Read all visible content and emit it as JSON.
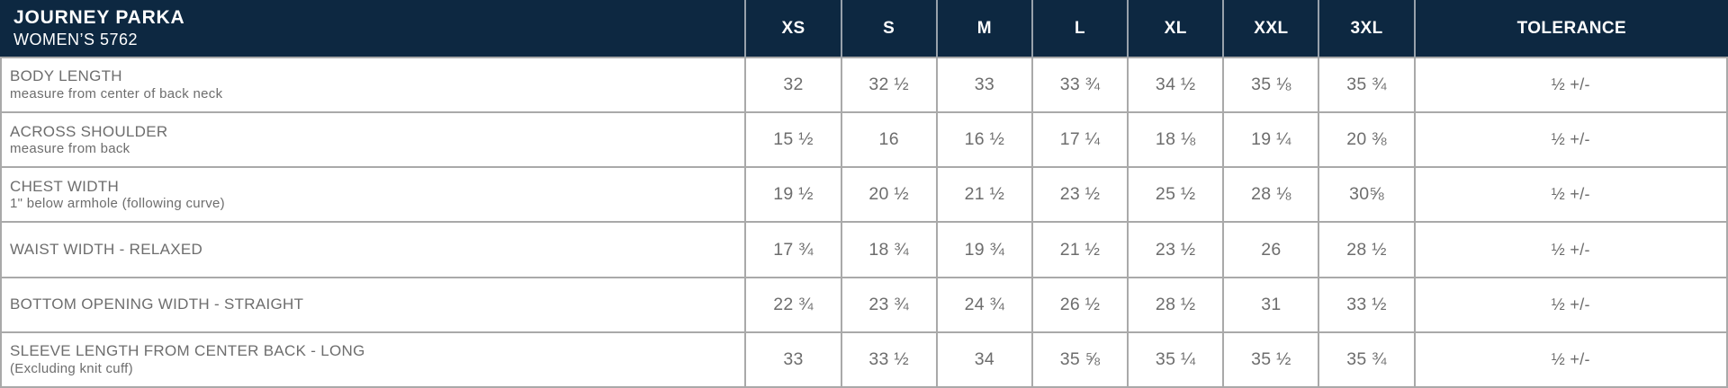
{
  "header": {
    "title": "JOURNEY PARKA",
    "subtitle": "WOMEN’S 5762",
    "size_columns": [
      "XS",
      "S",
      "M",
      "L",
      "XL",
      "XXL",
      "3XL"
    ],
    "tolerance_label": "TOLERANCE"
  },
  "colors": {
    "header_bg": "#0d2841",
    "header_text": "#ffffff",
    "grid_line": "#a9a9a9",
    "header_divider": "#97a1ab",
    "body_text": "#6d6d6d"
  },
  "rows": [
    {
      "label": "BODY LENGTH",
      "note": "measure from center of back neck",
      "values": [
        "32",
        "32 ½",
        "33",
        "33 ¾",
        "34 ½",
        "35 ⅛",
        "35 ¾"
      ],
      "tolerance": "½ +/-"
    },
    {
      "label": "ACROSS SHOULDER",
      "note": "measure from back",
      "values": [
        "15 ½",
        "16",
        "16 ½",
        "17 ¼",
        "18 ⅛",
        "19 ¼",
        "20 ⅜"
      ],
      "tolerance": "½ +/-"
    },
    {
      "label": "CHEST WIDTH",
      "note": "1\" below armhole (following curve)",
      "values": [
        "19 ½",
        "20 ½",
        "21 ½",
        "23 ½",
        "25 ½",
        "28 ⅛",
        "30⅝"
      ],
      "tolerance": "½ +/-"
    },
    {
      "label": "WAIST WIDTH - RELAXED",
      "note": "",
      "values": [
        "17 ¾",
        "18 ¾",
        "19 ¾",
        "21 ½",
        "23 ½",
        "26",
        "28 ½"
      ],
      "tolerance": "½ +/-"
    },
    {
      "label": "BOTTOM OPENING WIDTH - STRAIGHT",
      "note": "",
      "values": [
        "22 ¾",
        "23 ¾",
        "24 ¾",
        "26 ½",
        "28 ½",
        "31",
        "33 ½"
      ],
      "tolerance": "½ +/-"
    },
    {
      "label": "SLEEVE LENGTH FROM CENTER BACK - LONG",
      "note": "(Excluding knit cuff)",
      "values": [
        "33",
        "33 ½",
        "34",
        "35 ⅝",
        "35 ¼",
        "35 ½",
        "35 ¾"
      ],
      "tolerance": "½ +/-"
    }
  ]
}
